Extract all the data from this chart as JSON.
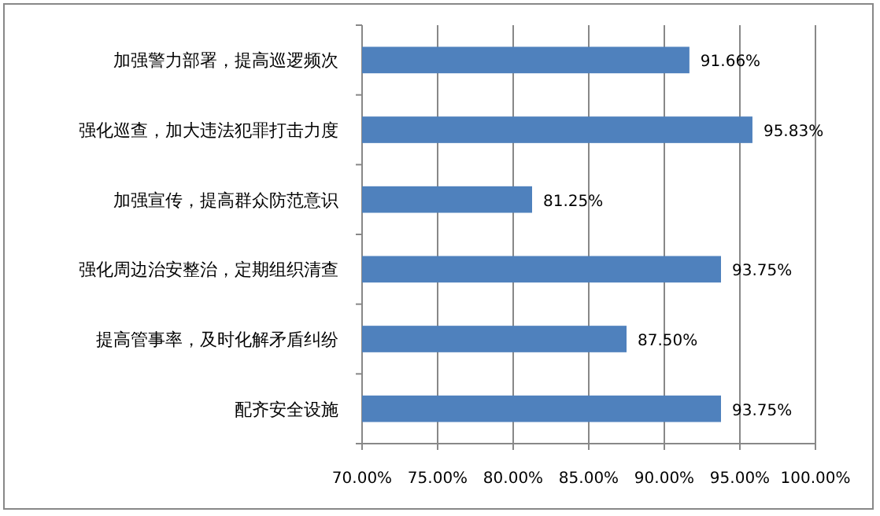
{
  "chart_data": {
    "type": "bar",
    "orientation": "horizontal",
    "categories": [
      "加强警力部署，提高巡逻频次",
      "强化巡查，加大违法犯罪打击力度",
      "加强宣传，提高群众防范意识",
      "强化周边治安整治，定期组织清查",
      "提高管事率，及时化解矛盾纠纷",
      "配齐安全设施"
    ],
    "values": [
      91.66,
      95.83,
      81.25,
      93.75,
      87.5,
      93.75
    ],
    "value_labels": [
      "91.66%",
      "95.83%",
      "81.25%",
      "93.75%",
      "87.50%",
      "93.75%"
    ],
    "color": "#4f81bd",
    "xlim": [
      70,
      100
    ],
    "xticks": [
      {
        "value": 70,
        "label": "70.00%"
      },
      {
        "value": 75,
        "label": "75.00%"
      },
      {
        "value": 80,
        "label": "80.00%"
      },
      {
        "value": 85,
        "label": "85.00%"
      },
      {
        "value": 90,
        "label": "90.00%"
      },
      {
        "value": 95,
        "label": "95.00%"
      },
      {
        "value": 100,
        "label": "100.00%"
      }
    ],
    "grid": "x"
  }
}
